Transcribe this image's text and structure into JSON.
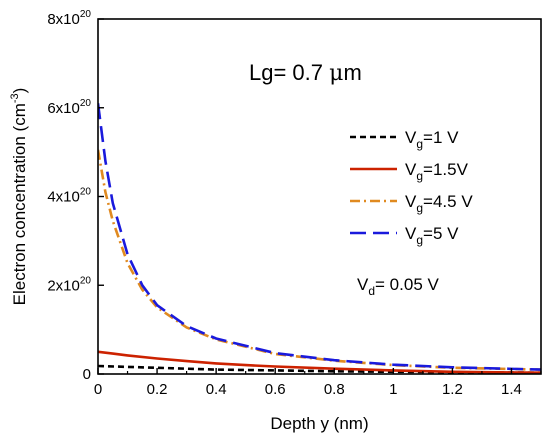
{
  "chart_data": {
    "type": "line",
    "xlabel": "Depth y (nm)",
    "ylabel": "Electron concentration (cm",
    "ylabel_sup": "-3",
    "ylabel_close": ")",
    "xlim": [
      0,
      1.5
    ],
    "ylim": [
      0,
      8e+20
    ],
    "x_ticks": [
      0,
      0.2,
      0.4,
      0.6,
      0.8,
      1,
      1.2,
      1.4
    ],
    "x_tick_labels": [
      "0",
      "0.2",
      "0.4",
      "0.6",
      "0.8",
      "1",
      "1.2",
      "1.4"
    ],
    "y_ticks": [
      0,
      2e+20,
      4e+20,
      6e+20,
      8e+20
    ],
    "y_tick_labels": [
      {
        "base": "0",
        "exp": ""
      },
      {
        "base": "2x10",
        "exp": "20"
      },
      {
        "base": "4x10",
        "exp": "20"
      },
      {
        "base": "6x10",
        "exp": "20"
      },
      {
        "base": "8x10",
        "exp": "20"
      }
    ],
    "grid": false,
    "legend_position": "right",
    "annotations": [
      {
        "id": "lg",
        "pre": "Lg= 0.7 ",
        "greek": "μ",
        "post": "m"
      },
      {
        "id": "vd",
        "pre": "V",
        "sub": "d",
        "post": "= 0.05 V"
      }
    ],
    "series": [
      {
        "legend_pre": "V",
        "legend_sub": "g",
        "legend_post": "=1 V",
        "color": "#000000",
        "dash": "6,4",
        "x": [
          0,
          0.1,
          0.2,
          0.3,
          0.4,
          0.6,
          0.8,
          1.0,
          1.2,
          1.5
        ],
        "y": [
          1.8e+19,
          1.6e+19,
          1.4e+19,
          1.2e+19,
          1e+19,
          8e+18,
          6e+18,
          5e+18,
          4e+18,
          3e+18
        ]
      },
      {
        "legend_pre": "V",
        "legend_sub": "g",
        "legend_post": "=1.5V",
        "color": "#cc2200",
        "dash": "",
        "x": [
          0,
          0.05,
          0.1,
          0.2,
          0.3,
          0.4,
          0.5,
          0.6,
          0.8,
          1.0,
          1.2,
          1.5
        ],
        "y": [
          5e+19,
          4.6e+19,
          4.2e+19,
          3.5e+19,
          2.9e+19,
          2.4e+19,
          2e+19,
          1.7e+19,
          1.2e+19,
          8e+18,
          5e+18,
          3e+18
        ]
      },
      {
        "legend_pre": "V",
        "legend_sub": "g",
        "legend_post": "=4.5 V",
        "color": "#e08a20",
        "dash": "10,4,2,4",
        "x": [
          0,
          0.025,
          0.05,
          0.1,
          0.15,
          0.2,
          0.3,
          0.4,
          0.6,
          0.8,
          1.0,
          1.2,
          1.5
        ],
        "y": [
          5.05e+20,
          4.1e+20,
          3.45e+20,
          2.5e+20,
          1.9e+20,
          1.5e+20,
          1.05e+20,
          7.8e+19,
          4.5e+19,
          3e+19,
          2e+19,
          1.4e+19,
          1e+19
        ]
      },
      {
        "legend_pre": "V",
        "legend_sub": "g",
        "legend_post": "=5 V",
        "color": "#1a1adc",
        "dash": "16,7",
        "x": [
          0,
          0.025,
          0.05,
          0.1,
          0.15,
          0.2,
          0.3,
          0.4,
          0.6,
          0.8,
          1.0,
          1.2,
          1.5
        ],
        "y": [
          6.1e+20,
          4.8e+20,
          3.85e+20,
          2.7e+20,
          2e+20,
          1.55e+20,
          1.08e+20,
          8e+19,
          4.7e+19,
          3.1e+19,
          2.1e+19,
          1.5e+19,
          1e+19
        ]
      }
    ]
  }
}
